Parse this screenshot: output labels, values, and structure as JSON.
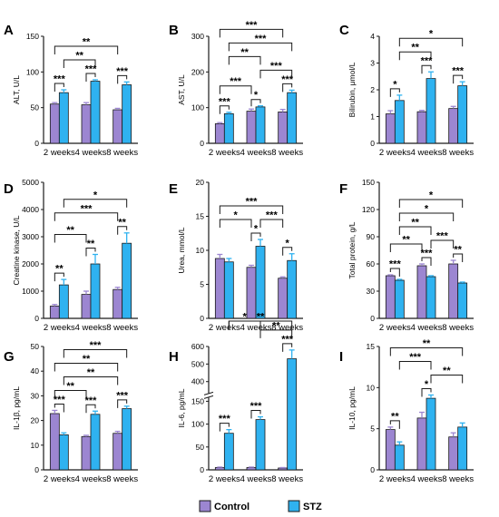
{
  "colors": {
    "control": "#9c86d1",
    "stz": "#2fb2f0",
    "outline": "#1a1a1a"
  },
  "legend": [
    {
      "key": "control",
      "label": "Control"
    },
    {
      "key": "stz",
      "label": "STZ"
    }
  ],
  "chart_data": [
    {
      "type": "bar",
      "panel": "A",
      "ylabel": "ALT, U/L",
      "categories": [
        "2 weeks",
        "4 weeks",
        "8 weeks"
      ],
      "ylim": [
        0,
        150
      ],
      "yticks": [
        0,
        50,
        100,
        150
      ],
      "ytick_labels": [
        "0",
        "50",
        "100",
        "150"
      ],
      "series": [
        {
          "name": "Control",
          "values": [
            55,
            54,
            47
          ],
          "errors": [
            2,
            3,
            2
          ]
        },
        {
          "name": "STZ",
          "values": [
            71,
            87,
            82
          ],
          "errors": [
            4,
            2,
            4
          ]
        }
      ],
      "annotations": [
        {
          "from": [
            0,
            0
          ],
          "to": [
            0,
            1
          ],
          "label": "***"
        },
        {
          "from": [
            1,
            0
          ],
          "to": [
            1,
            1
          ],
          "label": "***"
        },
        {
          "from": [
            2,
            0
          ],
          "to": [
            2,
            1
          ],
          "label": "***"
        },
        {
          "from": [
            0,
            1
          ],
          "to": [
            1,
            1
          ],
          "label": "**"
        },
        {
          "from": [
            0,
            0
          ],
          "to": [
            2,
            0
          ],
          "label": "**"
        }
      ]
    },
    {
      "type": "bar",
      "panel": "B",
      "ylabel": "AST, U/L",
      "categories": [
        "2 weeks",
        "4 weeks",
        "8 weeks"
      ],
      "ylim": [
        0,
        300
      ],
      "yticks": [
        0,
        100,
        200,
        300
      ],
      "ytick_labels": [
        "0",
        "100",
        "200",
        "300"
      ],
      "series": [
        {
          "name": "Control",
          "values": [
            55,
            90,
            88
          ],
          "errors": [
            3,
            6,
            7
          ]
        },
        {
          "name": "STZ",
          "values": [
            83,
            102,
            142
          ],
          "errors": [
            4,
            3,
            7
          ]
        }
      ],
      "annotations": [
        {
          "from": [
            0,
            0
          ],
          "to": [
            0,
            1
          ],
          "label": "***"
        },
        {
          "from": [
            1,
            0
          ],
          "to": [
            1,
            1
          ],
          "label": "*"
        },
        {
          "from": [
            2,
            0
          ],
          "to": [
            2,
            1
          ],
          "label": "***"
        },
        {
          "from": [
            0,
            0
          ],
          "to": [
            1,
            0
          ],
          "label": "***"
        },
        {
          "from": [
            1,
            1
          ],
          "to": [
            2,
            1
          ],
          "label": "***"
        },
        {
          "from": [
            0,
            1
          ],
          "to": [
            1,
            1
          ],
          "label": "**"
        },
        {
          "from": [
            0,
            1
          ],
          "to": [
            2,
            1
          ],
          "label": "***"
        },
        {
          "from": [
            0,
            0
          ],
          "to": [
            2,
            0
          ],
          "label": "***"
        }
      ]
    },
    {
      "type": "bar",
      "panel": "C",
      "ylabel": "Bilirubin, μmol/L",
      "categories": [
        "2 weeks",
        "4 weeks",
        "8 weeks"
      ],
      "ylim": [
        0,
        4
      ],
      "yticks": [
        0,
        1,
        2,
        3,
        4
      ],
      "ytick_labels": [
        "0",
        "1",
        "2",
        "3",
        "4"
      ],
      "series": [
        {
          "name": "Control",
          "values": [
            1.1,
            1.18,
            1.3
          ],
          "errors": [
            0.12,
            0.05,
            0.08
          ]
        },
        {
          "name": "STZ",
          "values": [
            1.6,
            2.42,
            2.15
          ],
          "errors": [
            0.2,
            0.25,
            0.15
          ]
        }
      ],
      "annotations": [
        {
          "from": [
            0,
            0
          ],
          "to": [
            0,
            1
          ],
          "label": "*"
        },
        {
          "from": [
            1,
            0
          ],
          "to": [
            1,
            1
          ],
          "label": "***"
        },
        {
          "from": [
            2,
            0
          ],
          "to": [
            2,
            1
          ],
          "label": "***"
        },
        {
          "from": [
            0,
            1
          ],
          "to": [
            1,
            1
          ],
          "label": "**"
        },
        {
          "from": [
            0,
            1
          ],
          "to": [
            2,
            1
          ],
          "label": "*"
        }
      ]
    },
    {
      "type": "bar",
      "panel": "D",
      "ylabel": "Creatine kinase, U/L",
      "categories": [
        "2 weeks",
        "4 weeks",
        "8 weeks"
      ],
      "ylim": [
        0,
        5000
      ],
      "yticks": [
        0,
        1000,
        2000,
        3000,
        4000,
        5000
      ],
      "ytick_labels": [
        "0",
        "1000",
        "2000",
        "3000",
        "4000",
        "5000"
      ],
      "series": [
        {
          "name": "Control",
          "values": [
            450,
            880,
            1060
          ],
          "errors": [
            60,
            120,
            80
          ]
        },
        {
          "name": "STZ",
          "values": [
            1230,
            2000,
            2760
          ],
          "errors": [
            200,
            350,
            380
          ]
        }
      ],
      "annotations": [
        {
          "from": [
            0,
            0
          ],
          "to": [
            0,
            1
          ],
          "label": "**"
        },
        {
          "from": [
            1,
            0
          ],
          "to": [
            1,
            1
          ],
          "label": "**"
        },
        {
          "from": [
            2,
            0
          ],
          "to": [
            2,
            1
          ],
          "label": "**"
        },
        {
          "from": [
            0,
            0
          ],
          "to": [
            1,
            0
          ],
          "label": "**"
        },
        {
          "from": [
            0,
            0
          ],
          "to": [
            2,
            0
          ],
          "label": "***"
        },
        {
          "from": [
            0,
            1
          ],
          "to": [
            2,
            1
          ],
          "label": "*"
        }
      ]
    },
    {
      "type": "bar",
      "panel": "E",
      "ylabel": "Urea, mmol/L",
      "categories": [
        "2 weeks",
        "4 weeks",
        "8 weeks"
      ],
      "ylim": [
        0,
        20
      ],
      "yticks": [
        0,
        5,
        10,
        15,
        20
      ],
      "ytick_labels": [
        "0",
        "5",
        "10",
        "15",
        "20"
      ],
      "series": [
        {
          "name": "Control",
          "values": [
            8.8,
            7.5,
            5.9
          ],
          "errors": [
            0.6,
            0.3,
            0.2
          ]
        },
        {
          "name": "STZ",
          "values": [
            8.3,
            10.6,
            8.5
          ],
          "errors": [
            0.5,
            1.0,
            1.0
          ]
        }
      ],
      "annotations": [
        {
          "from": [
            1,
            0
          ],
          "to": [
            1,
            1
          ],
          "label": "*"
        },
        {
          "from": [
            2,
            0
          ],
          "to": [
            2,
            1
          ],
          "label": "*"
        },
        {
          "from": [
            0,
            0
          ],
          "to": [
            1,
            0
          ],
          "label": "*"
        },
        {
          "from": [
            1,
            1
          ],
          "to": [
            2,
            0
          ],
          "label": "***"
        },
        {
          "from": [
            0,
            0
          ],
          "to": [
            2,
            0
          ],
          "label": "***"
        }
      ]
    },
    {
      "type": "bar",
      "panel": "F",
      "ylabel": "Total protein, g/L",
      "categories": [
        "2 weeks",
        "4 weeks",
        "8 weeks"
      ],
      "ylim": [
        0,
        150
      ],
      "yticks": [
        0,
        30,
        60,
        90,
        120,
        150
      ],
      "ytick_labels": [
        "0",
        "30",
        "60",
        "90",
        "120",
        "150"
      ],
      "series": [
        {
          "name": "Control",
          "values": [
            47,
            58,
            60
          ],
          "errors": [
            1,
            2,
            4
          ]
        },
        {
          "name": "STZ",
          "values": [
            42,
            46,
            39
          ],
          "errors": [
            1,
            1,
            1
          ]
        }
      ],
      "annotations": [
        {
          "from": [
            0,
            0
          ],
          "to": [
            0,
            1
          ],
          "label": "***"
        },
        {
          "from": [
            1,
            0
          ],
          "to": [
            1,
            1
          ],
          "label": "***"
        },
        {
          "from": [
            2,
            0
          ],
          "to": [
            2,
            1
          ],
          "label": "**"
        },
        {
          "from": [
            0,
            0
          ],
          "to": [
            1,
            0
          ],
          "label": "**"
        },
        {
          "from": [
            1,
            1
          ],
          "to": [
            2,
            0
          ],
          "label": "***"
        },
        {
          "from": [
            0,
            1
          ],
          "to": [
            1,
            1
          ],
          "label": "**"
        },
        {
          "from": [
            0,
            1
          ],
          "to": [
            2,
            0
          ],
          "label": "*"
        },
        {
          "from": [
            0,
            1
          ],
          "to": [
            2,
            1
          ],
          "label": "*"
        }
      ]
    },
    {
      "type": "bar",
      "panel": "G",
      "ylabel": "IL-1β, pg/mL",
      "categories": [
        "2 weeks",
        "4 weeks",
        "8 weeks"
      ],
      "ylim": [
        0,
        50
      ],
      "yticks": [
        0,
        10,
        20,
        30,
        40,
        50
      ],
      "ytick_labels": [
        "0",
        "10",
        "20",
        "30",
        "40",
        "50"
      ],
      "series": [
        {
          "name": "Control",
          "values": [
            22.8,
            13.5,
            14.8
          ],
          "errors": [
            1.3,
            0.5,
            0.8
          ]
        },
        {
          "name": "STZ",
          "values": [
            14.2,
            22.5,
            24.8
          ],
          "errors": [
            0.8,
            1.3,
            1.0
          ]
        }
      ],
      "annotations": [
        {
          "from": [
            0,
            0
          ],
          "to": [
            0,
            1
          ],
          "label": "***"
        },
        {
          "from": [
            1,
            0
          ],
          "to": [
            1,
            1
          ],
          "label": "***"
        },
        {
          "from": [
            2,
            0
          ],
          "to": [
            2,
            1
          ],
          "label": "***"
        },
        {
          "from": [
            0,
            0
          ],
          "to": [
            1,
            0
          ],
          "label": "**"
        },
        {
          "from": [
            0,
            0
          ],
          "to": [
            2,
            0
          ],
          "label": "**"
        },
        {
          "from": [
            0,
            1
          ],
          "to": [
            2,
            0
          ],
          "label": "**"
        },
        {
          "from": [
            0,
            1
          ],
          "to": [
            2,
            1
          ],
          "label": "***"
        }
      ]
    },
    {
      "type": "bar",
      "panel": "H",
      "ylabel": "IL-6, pg/mL",
      "categories": [
        "2 weeks",
        "4 weeks",
        "8 weeks"
      ],
      "axis_break": {
        "low_max": 150,
        "high_min": 350,
        "high_max": 600
      },
      "ylim": [
        0,
        600
      ],
      "yticks": [
        0,
        50,
        100,
        150,
        400,
        500,
        600
      ],
      "ytick_labels": [
        "0",
        "50",
        "100",
        "150",
        "400",
        "500",
        "600"
      ],
      "series": [
        {
          "name": "Control",
          "values": [
            5,
            5,
            4
          ],
          "errors": [
            1,
            1,
            1
          ]
        },
        {
          "name": "STZ",
          "values": [
            80,
            110,
            530
          ],
          "errors": [
            8,
            6,
            50
          ]
        }
      ],
      "annotations": [
        {
          "from": [
            0,
            0
          ],
          "to": [
            0,
            1
          ],
          "label": "***"
        },
        {
          "from": [
            1,
            0
          ],
          "to": [
            1,
            1
          ],
          "label": "***"
        },
        {
          "from": [
            2,
            0
          ],
          "to": [
            2,
            1
          ],
          "label": "***"
        },
        {
          "from": [
            0,
            1
          ],
          "to": [
            1,
            1
          ],
          "label": "*"
        },
        {
          "from": [
            1,
            1
          ],
          "to": [
            2,
            1
          ],
          "label": "**"
        },
        {
          "from": [
            0,
            1
          ],
          "to": [
            2,
            1
          ],
          "label": "**"
        }
      ]
    },
    {
      "type": "bar",
      "panel": "I",
      "ylabel": "IL-10, pg/mL",
      "categories": [
        "2 weeks",
        "4 weeks",
        "8 weeks"
      ],
      "ylim": [
        0,
        15
      ],
      "yticks": [
        0,
        5,
        10,
        15
      ],
      "ytick_labels": [
        "0",
        "5",
        "10",
        "15"
      ],
      "series": [
        {
          "name": "Control",
          "values": [
            4.9,
            6.3,
            4.0
          ],
          "errors": [
            0.3,
            0.7,
            0.5
          ]
        },
        {
          "name": "STZ",
          "values": [
            3.0,
            8.7,
            5.2
          ],
          "errors": [
            0.4,
            0.4,
            0.5
          ]
        }
      ],
      "annotations": [
        {
          "from": [
            0,
            0
          ],
          "to": [
            0,
            1
          ],
          "label": "**"
        },
        {
          "from": [
            1,
            0
          ],
          "to": [
            1,
            1
          ],
          "label": "*"
        },
        {
          "from": [
            1,
            1
          ],
          "to": [
            2,
            1
          ],
          "label": "**"
        },
        {
          "from": [
            0,
            1
          ],
          "to": [
            1,
            1
          ],
          "label": "***"
        },
        {
          "from": [
            0,
            0
          ],
          "to": [
            2,
            1
          ],
          "label": "**"
        }
      ]
    }
  ]
}
